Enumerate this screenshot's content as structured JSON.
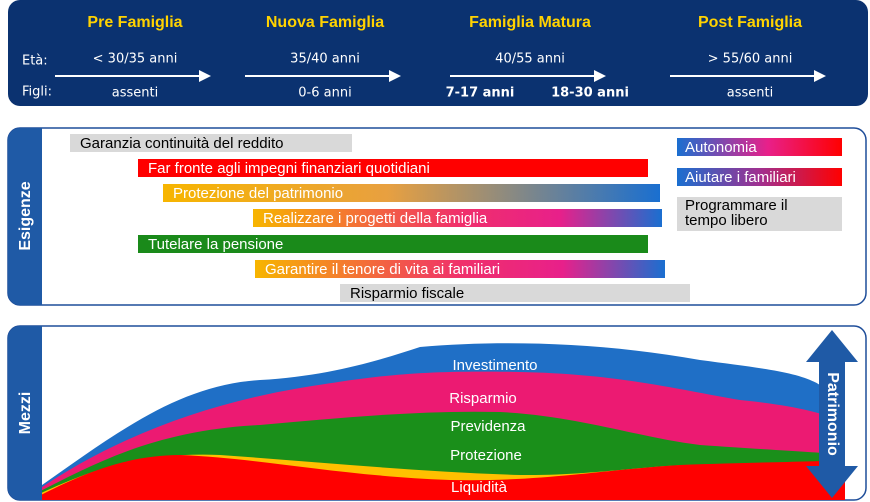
{
  "header": {
    "row_labels": [
      "Età:",
      "Figli:"
    ],
    "stages": [
      {
        "title": "Pre Famiglia",
        "age": "< 30/35 anni",
        "children": [
          "assenti"
        ]
      },
      {
        "title": "Nuova Famiglia",
        "age": "35/40 anni",
        "children": [
          "0-6 anni"
        ]
      },
      {
        "title": "Famiglia Matura",
        "age": "40/55 anni",
        "children": [
          "7-17 anni",
          "18-30 anni"
        ]
      },
      {
        "title": "Post Famiglia",
        "age": "> 55/60 anni",
        "children": [
          "assenti"
        ]
      }
    ]
  },
  "needs": {
    "label": "Esigenze",
    "bars": [
      "Garanzia continuità del reddito",
      "Far fronte agli impegni finanziari quotidiani",
      "Protezione del patrimonio",
      "Realizzare i progetti della famiglia",
      "Tutelare la pensione",
      "Garantire il tenore di vita ai familiari",
      "Risparmio fiscale"
    ],
    "side": [
      "Autonomia",
      "Aiutare i familiari",
      [
        "Programmare il",
        "tempo libero"
      ]
    ]
  },
  "means": {
    "label": "Mezzi",
    "layers": [
      "Investimento",
      "Risparmio",
      "Previdenza",
      "Protezione",
      "Liquidità"
    ],
    "arrow": "Patrimonio"
  }
}
